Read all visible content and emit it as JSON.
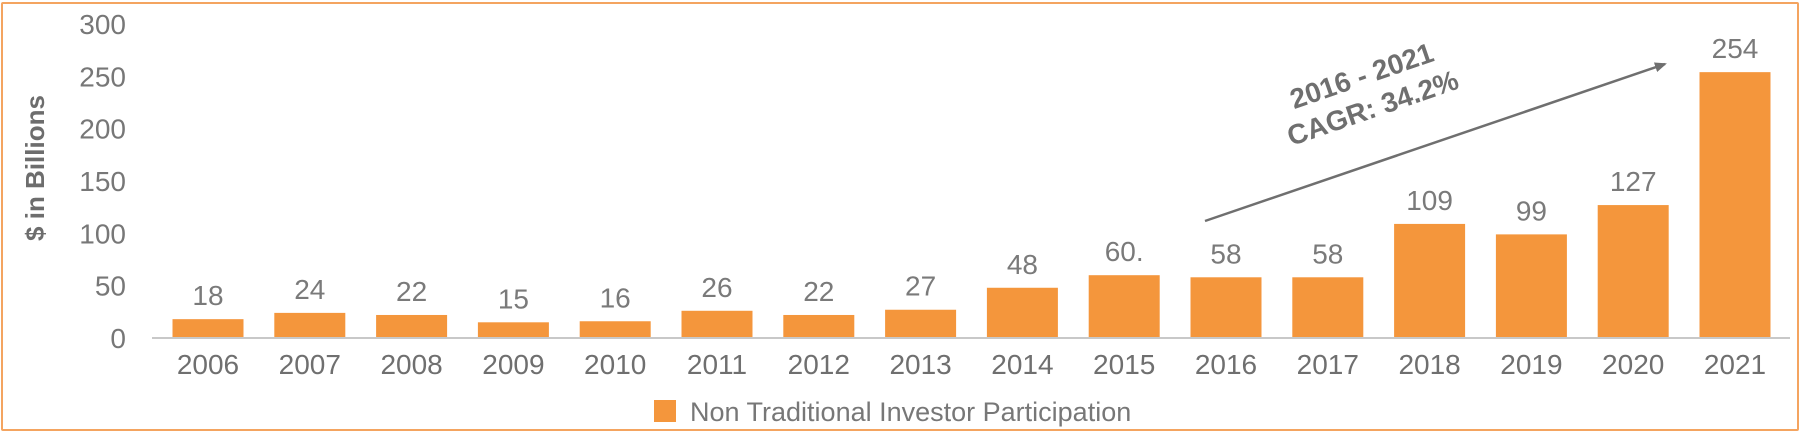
{
  "chart_data": {
    "type": "bar",
    "categories": [
      "2006",
      "2007",
      "2008",
      "2009",
      "2010",
      "2011",
      "2012",
      "2013",
      "2014",
      "2015",
      "2016",
      "2017",
      "2018",
      "2019",
      "2020",
      "2021"
    ],
    "series": [
      {
        "name": "Non Traditional Investor Participation",
        "values": [
          18,
          24,
          22,
          15,
          16,
          26,
          22,
          27,
          48,
          60,
          58,
          58,
          109,
          99,
          127,
          254
        ],
        "labels": [
          "18",
          "24",
          "22",
          "15",
          "16",
          "26",
          "22",
          "27",
          "48",
          "60.",
          "58",
          "58",
          "109",
          "99",
          "127",
          "254"
        ],
        "color": "#F4963C"
      }
    ],
    "ylabel": "$ in Billions",
    "yticks": [
      "0",
      "50",
      "100",
      "150",
      "200",
      "250",
      "300"
    ],
    "ylim": [
      0,
      300
    ],
    "grid": false,
    "legend": "bottom-center",
    "annotation": {
      "line1": "2016 - 2021",
      "line2": "CAGR: 34.2%"
    },
    "frame_color": "#F4A460",
    "axis_color": "#c8c8c8"
  }
}
